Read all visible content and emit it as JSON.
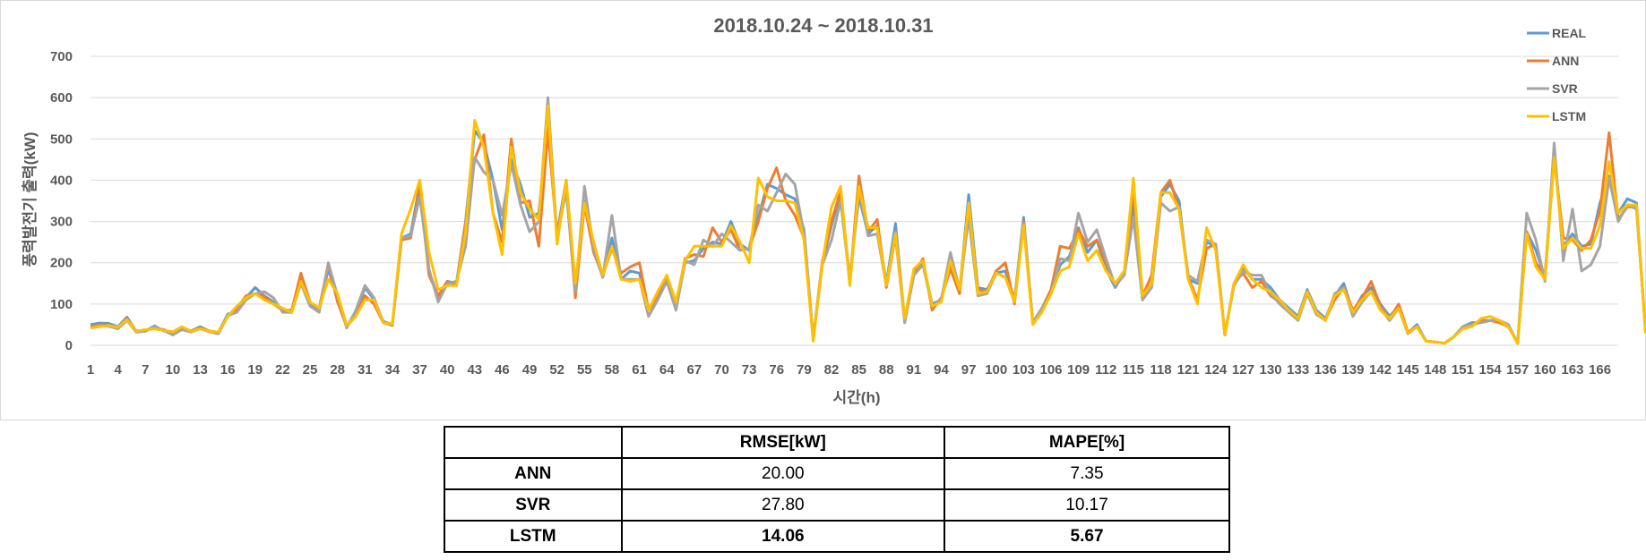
{
  "chart_data": {
    "type": "line",
    "title": "2018.10.24 ~ 2018.10.31",
    "xlabel": "시간(h)",
    "ylabel": "풍력발전기 출력(kW)",
    "ylim": [
      0,
      700
    ],
    "yticks": [
      0,
      100,
      200,
      300,
      400,
      500,
      600,
      700
    ],
    "xlim": [
      1,
      168
    ],
    "xticks": [
      1,
      4,
      7,
      10,
      13,
      16,
      19,
      22,
      25,
      28,
      31,
      34,
      37,
      40,
      43,
      46,
      49,
      52,
      55,
      58,
      61,
      64,
      67,
      70,
      73,
      76,
      79,
      82,
      85,
      88,
      91,
      94,
      97,
      100,
      103,
      106,
      109,
      112,
      115,
      118,
      121,
      124,
      127,
      130,
      133,
      136,
      139,
      142,
      145,
      148,
      151,
      154,
      157,
      160,
      163,
      166
    ],
    "grid": "horizontal",
    "legend_position": "top-right",
    "series": [
      {
        "name": "REAL",
        "color": "#5B9BD5",
        "values": [
          50,
          54,
          53,
          45,
          68,
          33,
          35,
          47,
          35,
          30,
          42,
          35,
          45,
          34,
          32,
          75,
          85,
          115,
          140,
          120,
          105,
          85,
          80,
          160,
          100,
          85,
          185,
          110,
          45,
          75,
          140,
          110,
          58,
          50,
          260,
          270,
          390,
          180,
          115,
          155,
          150,
          300,
          520,
          490,
          400,
          280,
          450,
          390,
          310,
          320,
          540,
          270,
          400,
          125,
          350,
          230,
          165,
          260,
          160,
          180,
          175,
          85,
          110,
          160,
          90,
          200,
          205,
          235,
          250,
          245,
          300,
          245,
          230,
          310,
          390,
          380,
          365,
          355,
          280,
          15,
          200,
          290,
          370,
          160,
          360,
          270,
          290,
          150,
          295,
          60,
          180,
          200,
          100,
          110,
          200,
          130,
          365,
          140,
          135,
          175,
          180,
          110,
          310,
          55,
          85,
          130,
          195,
          215,
          285,
          225,
          255,
          185,
          140,
          175,
          345,
          110,
          150,
          360,
          390,
          350,
          160,
          150,
          250,
          240,
          25,
          150,
          190,
          160,
          160,
          140,
          110,
          90,
          70,
          135,
          85,
          65,
          120,
          150,
          80,
          120,
          140,
          100,
          70,
          95,
          30,
          50,
          10,
          8,
          5,
          20,
          45,
          55,
          55,
          60,
          60,
          45,
          5,
          275,
          230,
          165,
          465,
          240,
          270,
          240,
          245,
          345,
          410,
          320,
          355,
          345,
          30
        ]
      },
      {
        "name": "ANN",
        "color": "#ED7D31",
        "values": [
          45,
          50,
          48,
          42,
          65,
          35,
          36,
          42,
          38,
          30,
          40,
          34,
          42,
          35,
          30,
          70,
          90,
          120,
          125,
          118,
          100,
          85,
          85,
          175,
          105,
          90,
          195,
          105,
          45,
          72,
          120,
          100,
          55,
          50,
          255,
          260,
          380,
          170,
          120,
          155,
          145,
          295,
          450,
          510,
          320,
          250,
          500,
          345,
          350,
          240,
          520,
          265,
          390,
          115,
          340,
          225,
          170,
          235,
          175,
          190,
          200,
          85,
          120,
          165,
          100,
          210,
          220,
          215,
          285,
          250,
          280,
          230,
          235,
          300,
          380,
          430,
          350,
          315,
          260,
          15,
          205,
          300,
          375,
          150,
          410,
          275,
          305,
          140,
          265,
          55,
          175,
          210,
          85,
          115,
          185,
          125,
          330,
          135,
          130,
          180,
          200,
          100,
          300,
          55,
          90,
          135,
          240,
          235,
          280,
          240,
          255,
          200,
          145,
          170,
          380,
          120,
          170,
          370,
          400,
          330,
          165,
          110,
          235,
          245,
          25,
          150,
          175,
          140,
          155,
          120,
          105,
          85,
          65,
          130,
          80,
          62,
          110,
          140,
          85,
          115,
          155,
          95,
          65,
          100,
          32,
          45,
          10,
          8,
          5,
          20,
          40,
          50,
          60,
          60,
          55,
          45,
          5,
          275,
          200,
          170,
          455,
          260,
          255,
          230,
          255,
          325,
          515,
          305,
          335,
          335,
          30
        ]
      },
      {
        "name": "SVR",
        "color": "#A5A5A5",
        "values": [
          42,
          48,
          46,
          40,
          60,
          32,
          34,
          45,
          36,
          25,
          38,
          32,
          40,
          33,
          28,
          72,
          80,
          110,
          125,
          130,
          115,
          80,
          80,
          150,
          95,
          80,
          200,
          120,
          42,
          85,
          145,
          115,
          55,
          48,
          260,
          265,
          360,
          185,
          105,
          150,
          155,
          240,
          455,
          420,
          400,
          315,
          440,
          340,
          275,
          300,
          600,
          260,
          375,
          130,
          385,
          235,
          165,
          315,
          160,
          160,
          160,
          70,
          110,
          155,
          85,
          205,
          195,
          255,
          240,
          270,
          250,
          230,
          235,
          340,
          325,
          370,
          415,
          390,
          270,
          15,
          195,
          255,
          350,
          155,
          380,
          265,
          270,
          145,
          275,
          55,
          170,
          195,
          95,
          110,
          225,
          135,
          310,
          120,
          125,
          175,
          165,
          105,
          295,
          55,
          90,
          125,
          210,
          205,
          320,
          250,
          280,
          210,
          145,
          170,
          310,
          110,
          140,
          345,
          325,
          335,
          170,
          155,
          255,
          245,
          25,
          145,
          180,
          170,
          170,
          125,
          100,
          80,
          60,
          125,
          75,
          60,
          125,
          140,
          70,
          105,
          130,
          90,
          60,
          90,
          28,
          45,
          10,
          8,
          5,
          20,
          45,
          50,
          55,
          60,
          60,
          50,
          5,
          320,
          255,
          155,
          490,
          205,
          330,
          180,
          195,
          240,
          405,
          300,
          340,
          330,
          30
        ]
      },
      {
        "name": "LSTM",
        "color": "#FFC000",
        "values": [
          42,
          45,
          48,
          44,
          62,
          34,
          38,
          40,
          36,
          33,
          45,
          34,
          40,
          34,
          32,
          70,
          95,
          115,
          125,
          110,
          100,
          90,
          80,
          155,
          105,
          90,
          160,
          125,
          48,
          70,
          110,
          110,
          55,
          52,
          270,
          330,
          400,
          225,
          135,
          145,
          145,
          275,
          545,
          480,
          320,
          220,
          480,
          370,
          330,
          305,
          580,
          245,
          400,
          150,
          345,
          250,
          170,
          240,
          160,
          155,
          160,
          85,
          130,
          170,
          105,
          205,
          240,
          240,
          240,
          240,
          290,
          250,
          200,
          405,
          360,
          350,
          350,
          345,
          255,
          10,
          200,
          335,
          385,
          145,
          385,
          285,
          285,
          145,
          270,
          65,
          185,
          205,
          95,
          105,
          205,
          135,
          345,
          125,
          130,
          175,
          165,
          105,
          290,
          50,
          80,
          125,
          180,
          190,
          270,
          205,
          230,
          180,
          150,
          180,
          405,
          120,
          150,
          370,
          370,
          330,
          160,
          100,
          285,
          230,
          25,
          150,
          195,
          160,
          140,
          130,
          110,
          85,
          65,
          130,
          80,
          60,
          120,
          135,
          80,
          110,
          130,
          85,
          65,
          90,
          30,
          45,
          10,
          8,
          5,
          20,
          40,
          45,
          65,
          70,
          60,
          45,
          5,
          270,
          190,
          160,
          455,
          235,
          260,
          235,
          235,
          290,
          445,
          320,
          340,
          340,
          30
        ]
      }
    ]
  },
  "table": {
    "header": [
      "",
      "RMSE[kW]",
      "MAPE[%]"
    ],
    "rows": [
      {
        "model": "ANN",
        "rmse": "20.00",
        "mape": "7.35"
      },
      {
        "model": "SVR",
        "rmse": "27.80",
        "mape": "10.17"
      },
      {
        "model": "LSTM",
        "rmse": "14.06",
        "mape": "5.67"
      }
    ]
  }
}
